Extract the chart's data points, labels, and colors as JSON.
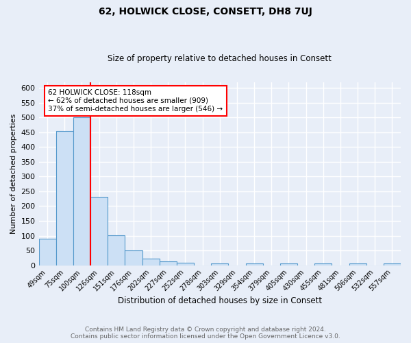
{
  "title": "62, HOLWICK CLOSE, CONSETT, DH8 7UJ",
  "subtitle": "Size of property relative to detached houses in Consett",
  "xlabel": "Distribution of detached houses by size in Consett",
  "ylabel": "Number of detached properties",
  "bar_labels": [
    "49sqm",
    "75sqm",
    "100sqm",
    "126sqm",
    "151sqm",
    "176sqm",
    "202sqm",
    "227sqm",
    "252sqm",
    "278sqm",
    "303sqm",
    "329sqm",
    "354sqm",
    "379sqm",
    "405sqm",
    "430sqm",
    "455sqm",
    "481sqm",
    "506sqm",
    "532sqm",
    "557sqm"
  ],
  "bar_values": [
    90,
    455,
    500,
    232,
    102,
    49,
    23,
    14,
    9,
    0,
    6,
    0,
    6,
    0,
    5,
    0,
    5,
    0,
    5,
    0,
    5
  ],
  "bar_color": "#cce0f5",
  "bar_edge_color": "#5599cc",
  "red_line_x": 2.5,
  "annotation_text": "62 HOLWICK CLOSE: 118sqm\n← 62% of detached houses are smaller (909)\n37% of semi-detached houses are larger (546) →",
  "annotation_box_color": "white",
  "annotation_box_edge_color": "red",
  "red_line_color": "red",
  "ylim": [
    0,
    620
  ],
  "yticks": [
    0,
    50,
    100,
    150,
    200,
    250,
    300,
    350,
    400,
    450,
    500,
    550,
    600
  ],
  "footer_line1": "Contains HM Land Registry data © Crown copyright and database right 2024.",
  "footer_line2": "Contains public sector information licensed under the Open Government Licence v3.0.",
  "bg_color": "#e8eef8",
  "grid_color": "white"
}
